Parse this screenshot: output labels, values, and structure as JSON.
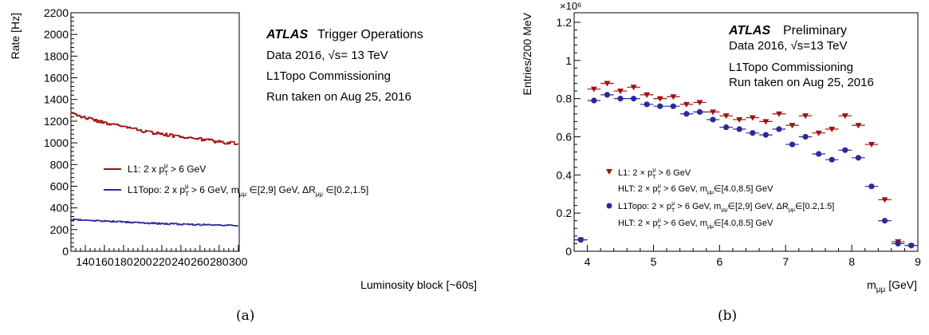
{
  "chart_data": [
    {
      "type": "line",
      "panel_label": "(a)",
      "xlabel": "Luminosity block [~60s]",
      "ylabel": "Rate [Hz]",
      "xlim": [
        125,
        301
      ],
      "ylim": [
        0,
        2200
      ],
      "xticks": [
        "140",
        "160",
        "180",
        "200",
        "220",
        "240",
        "260",
        "280",
        "300"
      ],
      "yticks": [
        "0",
        "200",
        "400",
        "600",
        "800",
        "1000",
        "1200",
        "1400",
        "1600",
        "1800",
        "2000",
        "2200"
      ],
      "annotations": {
        "brand": "ATLAS",
        "line1": "Trigger Operations",
        "line2": "Data 2016, √s= 13 TeV",
        "line3": "L1Topo Commissioning",
        "line4": "Run taken on Aug 25, 2016"
      },
      "legend_position": "middle-left",
      "series": [
        {
          "name": "L1: 2 x pTμ > 6 GeV",
          "color": "#a01010",
          "x": [
            125,
            140,
            160,
            180,
            200,
            220,
            240,
            260,
            280,
            300
          ],
          "y": [
            1270,
            1230,
            1185,
            1145,
            1110,
            1080,
            1055,
            1035,
            1010,
            990
          ]
        },
        {
          "name": "L1Topo: 2 x pTμ > 6 GeV, mμμ ∈[2,9] GeV, ΔRμμ ∈[0.2,1.5]",
          "color": "#2a2a9a",
          "x": [
            125,
            140,
            160,
            180,
            200,
            220,
            240,
            260,
            280,
            300
          ],
          "y": [
            295,
            288,
            278,
            270,
            262,
            255,
            250,
            245,
            240,
            235
          ]
        }
      ]
    },
    {
      "type": "scatter",
      "panel_label": "(b)",
      "xlabel": "mμμ [GeV]",
      "ylabel": "Entries/200 MeV",
      "y_multiplier": "×10⁶",
      "xlim": [
        3.8,
        9
      ],
      "ylim": [
        0,
        1.25
      ],
      "xticks": [
        "4",
        "5",
        "6",
        "7",
        "8",
        "9"
      ],
      "yticks": [
        "0",
        "0.2",
        "0.4",
        "0.6",
        "0.8",
        "1",
        "1.2"
      ],
      "annotations": {
        "brand": "ATLAS",
        "line1": "Preliminary",
        "line2": "Data 2016, √s=13 TeV",
        "line3": "L1Topo Commissioning",
        "line4": "Run taken on Aug 25, 2016"
      },
      "legend_position": "bottom-left",
      "series": [
        {
          "name": "L1: 2 × pTμ > 6 GeV / HLT: 2 × pTμ > 6 GeV, mμμ∈[4.0,8.5] GeV",
          "color": "#a01010",
          "marker": "triangle-down",
          "x": [
            3.9,
            4.1,
            4.3,
            4.5,
            4.7,
            4.9,
            5.1,
            5.3,
            5.5,
            5.7,
            5.9,
            6.1,
            6.3,
            6.5,
            6.7,
            6.9,
            7.1,
            7.3,
            7.5,
            7.7,
            7.9,
            8.1,
            8.3,
            8.5,
            8.7,
            8.9
          ],
          "y": [
            0.06,
            0.85,
            0.88,
            0.84,
            0.86,
            0.82,
            0.8,
            0.81,
            0.77,
            0.78,
            0.73,
            0.71,
            0.69,
            0.7,
            0.68,
            0.72,
            0.66,
            0.71,
            0.62,
            0.64,
            0.71,
            0.66,
            0.56,
            0.27,
            0.05,
            0.03
          ]
        },
        {
          "name": "L1Topo: 2 × pTμ > 6 GeV, mμμ∈[2,9] GeV, ΔRμμ∈[0.2,1.5] / HLT: 2 × pTμ > 6 GeV, mμμ∈[4.0,8.5] GeV",
          "color": "#2a2a9a",
          "marker": "circle",
          "x": [
            3.9,
            4.1,
            4.3,
            4.5,
            4.7,
            4.9,
            5.1,
            5.3,
            5.5,
            5.7,
            5.9,
            6.1,
            6.3,
            6.5,
            6.7,
            6.9,
            7.1,
            7.3,
            7.5,
            7.7,
            7.9,
            8.1,
            8.3,
            8.5,
            8.7,
            8.9
          ],
          "y": [
            0.06,
            0.79,
            0.82,
            0.8,
            0.8,
            0.77,
            0.76,
            0.76,
            0.72,
            0.73,
            0.69,
            0.65,
            0.64,
            0.62,
            0.61,
            0.64,
            0.56,
            0.6,
            0.51,
            0.48,
            0.53,
            0.49,
            0.34,
            0.16,
            0.04,
            0.03
          ]
        }
      ]
    }
  ]
}
